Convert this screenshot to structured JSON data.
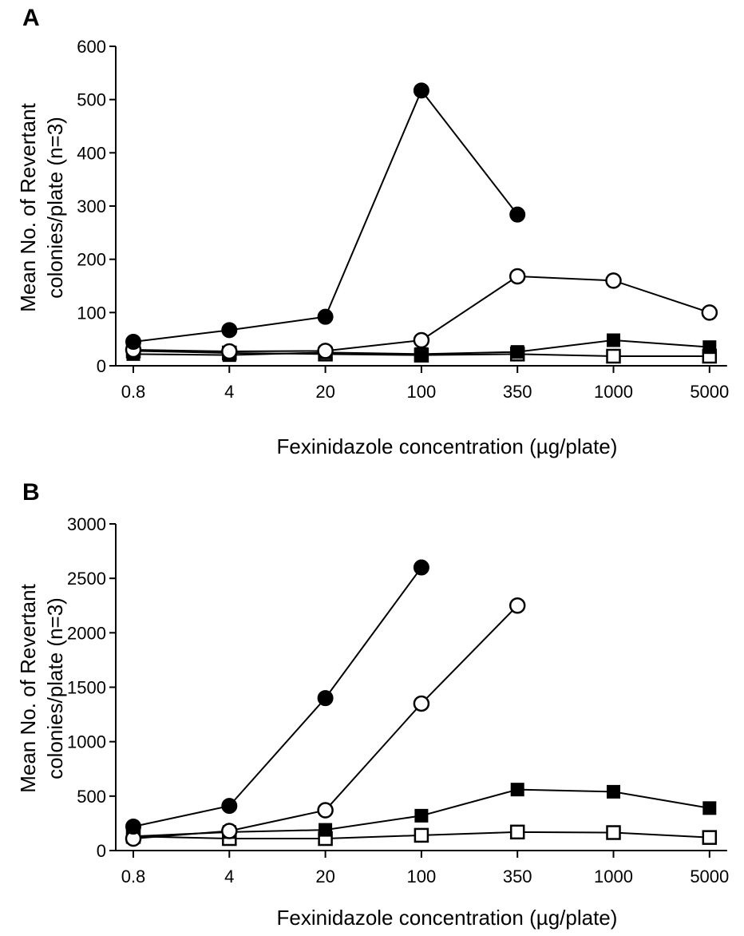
{
  "chart_data": [
    {
      "panel": "A",
      "type": "line",
      "categories": [
        "0.8",
        "4",
        "20",
        "100",
        "350",
        "1000",
        "5000"
      ],
      "xlabel": "Fexinidazole concentration (µg/plate)",
      "ylabel_line1": "Mean No. of Revertant",
      "ylabel_line2": "colonies/plate (n=3)",
      "ylim": [
        0,
        600
      ],
      "yticks": [
        "0",
        "100",
        "200",
        "300",
        "400",
        "500",
        "600"
      ],
      "grid": false,
      "series": [
        {
          "marker": "filled-circle",
          "values": [
            45,
            67,
            92,
            517,
            284,
            null,
            null
          ]
        },
        {
          "marker": "open-circle",
          "values": [
            30,
            27,
            28,
            48,
            168,
            160,
            100
          ]
        },
        {
          "marker": "filled-square",
          "values": [
            22,
            20,
            25,
            22,
            26,
            48,
            35
          ]
        },
        {
          "marker": "open-square",
          "values": [
            28,
            24,
            22,
            20,
            22,
            18,
            18
          ]
        }
      ]
    },
    {
      "panel": "B",
      "type": "line",
      "categories": [
        "0.8",
        "4",
        "20",
        "100",
        "350",
        "1000",
        "5000"
      ],
      "xlabel": "Fexinidazole concentration (µg/plate)",
      "ylabel_line1": "Mean No. of Revertant",
      "ylabel_line2": "colonies/plate (n=3)",
      "ylim": [
        0,
        3000
      ],
      "yticks": [
        "0",
        "500",
        "1000",
        "1500",
        "2000",
        "2500",
        "3000"
      ],
      "grid": false,
      "series": [
        {
          "marker": "filled-circle",
          "values": [
            220,
            410,
            1400,
            2600,
            null,
            null,
            null
          ]
        },
        {
          "marker": "open-circle",
          "values": [
            110,
            180,
            370,
            1350,
            2250,
            null,
            null
          ]
        },
        {
          "marker": "filled-square",
          "values": [
            130,
            170,
            190,
            320,
            560,
            540,
            390
          ]
        },
        {
          "marker": "open-square",
          "values": [
            130,
            110,
            110,
            140,
            170,
            165,
            120
          ]
        }
      ]
    }
  ]
}
